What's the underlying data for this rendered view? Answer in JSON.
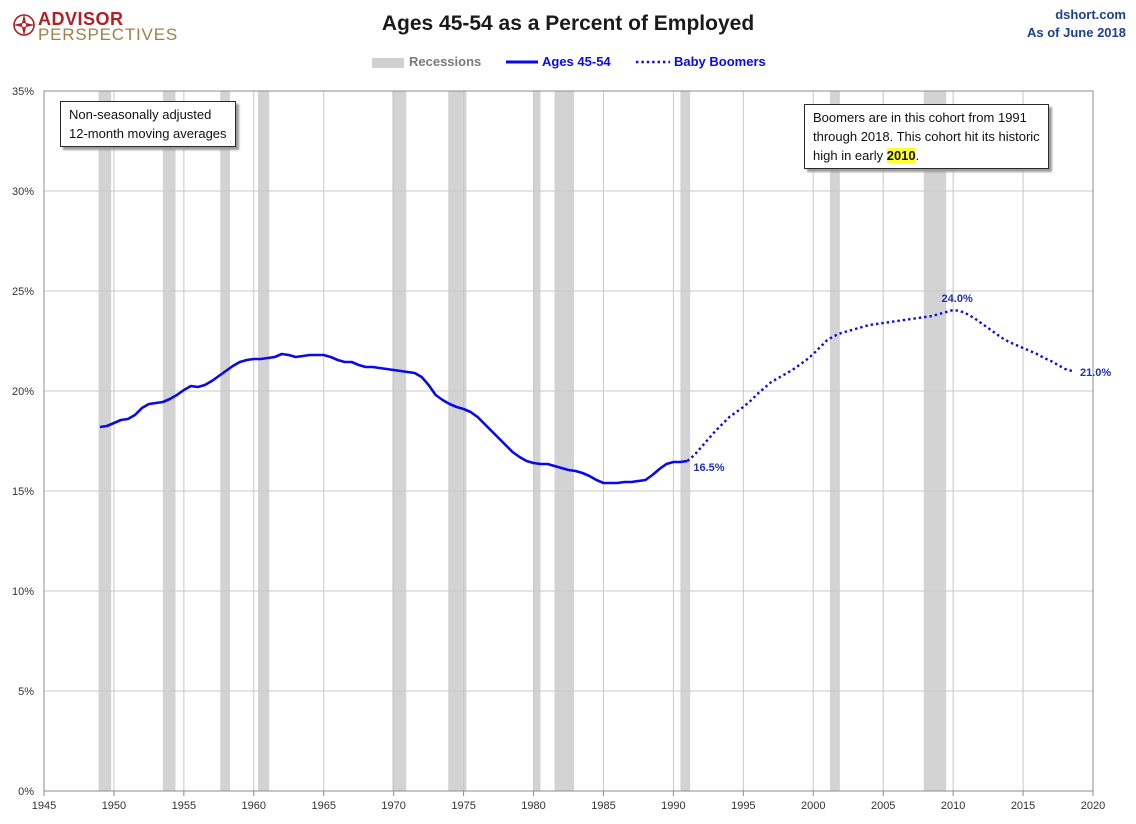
{
  "header": {
    "logo_line1": "ADVISOR",
    "logo_line2": "PERSPECTIVES",
    "title": "Ages 45-54 as a Percent of Employed",
    "source_line1": "dshort.com",
    "source_line2": "As of June 2018"
  },
  "legend": {
    "recessions": "Recessions",
    "series1": "Ages 45-54",
    "series2": "Baby Boomers"
  },
  "notes": {
    "left_line1": "Non-seasonally adjusted",
    "left_line2": "12-month moving averages",
    "right_line1": "Boomers are in this cohort from 1991",
    "right_line2": "through 2018.  This cohort hit its historic",
    "right_line3_prefix": "high in early ",
    "right_line3_highlight": "2010",
    "right_line3_suffix": "."
  },
  "colors": {
    "series": "#0a0ae6",
    "label": "#1f2fb8",
    "recession": "#d3d3d3",
    "grid": "#c8c8c8",
    "axis_text": "#333333",
    "logo_red": "#b21f24",
    "logo_gold": "#a08048",
    "source_blue": "#1f3f8f",
    "highlight": "#ffff33"
  },
  "chart_data": {
    "type": "line",
    "title": "Ages 45-54 as a Percent of Employed",
    "xlim": [
      1945,
      2020
    ],
    "ylim": [
      0,
      35
    ],
    "x_ticks": [
      1945,
      1950,
      1955,
      1960,
      1965,
      1970,
      1975,
      1980,
      1985,
      1990,
      1995,
      2000,
      2005,
      2010,
      2015,
      2020
    ],
    "y_ticks": [
      {
        "value": 0,
        "label": "0%"
      },
      {
        "value": 5,
        "label": "5%"
      },
      {
        "value": 10,
        "label": "10%"
      },
      {
        "value": 15,
        "label": "15%"
      },
      {
        "value": 20,
        "label": "20%"
      },
      {
        "value": 25,
        "label": "25%"
      },
      {
        "value": 30,
        "label": "30%"
      },
      {
        "value": 35,
        "label": "35%"
      }
    ],
    "grid": true,
    "legend_position": "top-center",
    "recessions": [
      [
        1948.9,
        1949.8
      ],
      [
        1953.5,
        1954.4
      ],
      [
        1957.6,
        1958.3
      ],
      [
        1960.3,
        1961.1
      ],
      [
        1969.9,
        1970.9
      ],
      [
        1973.9,
        1975.2
      ],
      [
        1980.0,
        1980.5
      ],
      [
        1981.5,
        1982.9
      ],
      [
        1990.5,
        1991.2
      ],
      [
        2001.2,
        2001.9
      ],
      [
        2007.9,
        2009.5
      ]
    ],
    "series": [
      {
        "name": "Ages 45-54",
        "style": "solid",
        "points": [
          [
            1949.0,
            18.2
          ],
          [
            1949.5,
            18.25
          ],
          [
            1950.0,
            18.4
          ],
          [
            1950.5,
            18.55
          ],
          [
            1951.0,
            18.6
          ],
          [
            1951.5,
            18.8
          ],
          [
            1952.0,
            19.15
          ],
          [
            1952.5,
            19.35
          ],
          [
            1953.0,
            19.4
          ],
          [
            1953.5,
            19.45
          ],
          [
            1954.0,
            19.6
          ],
          [
            1954.5,
            19.8
          ],
          [
            1955.0,
            20.05
          ],
          [
            1955.5,
            20.25
          ],
          [
            1956.0,
            20.2
          ],
          [
            1956.5,
            20.3
          ],
          [
            1957.0,
            20.5
          ],
          [
            1957.5,
            20.75
          ],
          [
            1958.0,
            21.0
          ],
          [
            1958.5,
            21.25
          ],
          [
            1959.0,
            21.45
          ],
          [
            1959.5,
            21.55
          ],
          [
            1960.0,
            21.6
          ],
          [
            1960.5,
            21.6
          ],
          [
            1961.0,
            21.65
          ],
          [
            1961.5,
            21.7
          ],
          [
            1962.0,
            21.85
          ],
          [
            1962.5,
            21.8
          ],
          [
            1963.0,
            21.7
          ],
          [
            1963.5,
            21.75
          ],
          [
            1964.0,
            21.8
          ],
          [
            1964.5,
            21.8
          ],
          [
            1965.0,
            21.8
          ],
          [
            1965.5,
            21.7
          ],
          [
            1966.0,
            21.55
          ],
          [
            1966.5,
            21.45
          ],
          [
            1967.0,
            21.45
          ],
          [
            1967.5,
            21.3
          ],
          [
            1968.0,
            21.2
          ],
          [
            1968.5,
            21.2
          ],
          [
            1969.0,
            21.15
          ],
          [
            1969.5,
            21.1
          ],
          [
            1970.0,
            21.05
          ],
          [
            1970.5,
            21.0
          ],
          [
            1971.0,
            20.95
          ],
          [
            1971.5,
            20.9
          ],
          [
            1972.0,
            20.7
          ],
          [
            1972.5,
            20.3
          ],
          [
            1973.0,
            19.8
          ],
          [
            1973.5,
            19.55
          ],
          [
            1974.0,
            19.35
          ],
          [
            1974.5,
            19.2
          ],
          [
            1975.0,
            19.1
          ],
          [
            1975.5,
            18.95
          ],
          [
            1976.0,
            18.7
          ],
          [
            1976.5,
            18.35
          ],
          [
            1977.0,
            18.0
          ],
          [
            1977.5,
            17.65
          ],
          [
            1978.0,
            17.3
          ],
          [
            1978.5,
            16.95
          ],
          [
            1979.0,
            16.7
          ],
          [
            1979.5,
            16.5
          ],
          [
            1980.0,
            16.4
          ],
          [
            1980.5,
            16.35
          ],
          [
            1981.0,
            16.35
          ],
          [
            1981.5,
            16.25
          ],
          [
            1982.0,
            16.15
          ],
          [
            1982.5,
            16.05
          ],
          [
            1983.0,
            16.0
          ],
          [
            1983.5,
            15.9
          ],
          [
            1984.0,
            15.75
          ],
          [
            1984.5,
            15.55
          ],
          [
            1985.0,
            15.4
          ],
          [
            1985.5,
            15.4
          ],
          [
            1986.0,
            15.4
          ],
          [
            1986.5,
            15.45
          ],
          [
            1987.0,
            15.45
          ],
          [
            1987.5,
            15.5
          ],
          [
            1988.0,
            15.55
          ],
          [
            1988.5,
            15.8
          ],
          [
            1989.0,
            16.1
          ],
          [
            1989.5,
            16.35
          ],
          [
            1990.0,
            16.45
          ],
          [
            1990.5,
            16.45
          ],
          [
            1991.0,
            16.5
          ]
        ]
      },
      {
        "name": "Baby Boomers",
        "style": "dotted",
        "points": [
          [
            1991.0,
            16.5
          ],
          [
            1991.5,
            16.8
          ],
          [
            1992.0,
            17.2
          ],
          [
            1992.5,
            17.6
          ],
          [
            1993.0,
            18.0
          ],
          [
            1993.5,
            18.35
          ],
          [
            1994.0,
            18.7
          ],
          [
            1994.5,
            18.95
          ],
          [
            1995.0,
            19.2
          ],
          [
            1995.5,
            19.5
          ],
          [
            1996.0,
            19.85
          ],
          [
            1996.5,
            20.15
          ],
          [
            1997.0,
            20.45
          ],
          [
            1997.5,
            20.65
          ],
          [
            1998.0,
            20.85
          ],
          [
            1998.5,
            21.05
          ],
          [
            1999.0,
            21.3
          ],
          [
            1999.5,
            21.55
          ],
          [
            2000.0,
            21.85
          ],
          [
            2000.5,
            22.2
          ],
          [
            2001.0,
            22.55
          ],
          [
            2001.5,
            22.75
          ],
          [
            2002.0,
            22.9
          ],
          [
            2002.5,
            23.0
          ],
          [
            2003.0,
            23.1
          ],
          [
            2003.5,
            23.2
          ],
          [
            2004.0,
            23.3
          ],
          [
            2004.5,
            23.35
          ],
          [
            2005.0,
            23.4
          ],
          [
            2005.5,
            23.45
          ],
          [
            2006.0,
            23.5
          ],
          [
            2006.5,
            23.55
          ],
          [
            2007.0,
            23.6
          ],
          [
            2007.5,
            23.65
          ],
          [
            2008.0,
            23.7
          ],
          [
            2008.5,
            23.75
          ],
          [
            2009.0,
            23.85
          ],
          [
            2009.5,
            23.95
          ],
          [
            2010.0,
            24.05
          ],
          [
            2010.5,
            24.0
          ],
          [
            2011.0,
            23.85
          ],
          [
            2011.5,
            23.65
          ],
          [
            2012.0,
            23.4
          ],
          [
            2012.5,
            23.15
          ],
          [
            2013.0,
            22.9
          ],
          [
            2013.5,
            22.65
          ],
          [
            2014.0,
            22.45
          ],
          [
            2014.5,
            22.3
          ],
          [
            2015.0,
            22.15
          ],
          [
            2015.5,
            22.0
          ],
          [
            2016.0,
            21.85
          ],
          [
            2016.5,
            21.65
          ],
          [
            2017.0,
            21.5
          ],
          [
            2017.5,
            21.3
          ],
          [
            2018.0,
            21.1
          ],
          [
            2018.5,
            21.0
          ]
        ]
      }
    ],
    "annotations": [
      {
        "label": "16.5%",
        "x": 1991.0,
        "y": 16.5
      },
      {
        "label": "24.0%",
        "x": 2010.0,
        "y": 24.0
      },
      {
        "label": "21.0%",
        "x": 2018.5,
        "y": 21.0
      }
    ]
  }
}
